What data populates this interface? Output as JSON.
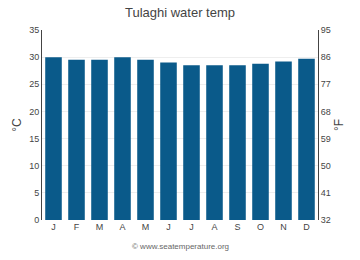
{
  "chart_data": {
    "type": "bar",
    "title": "Tulaghi water temp",
    "categories": [
      "J",
      "F",
      "M",
      "A",
      "M",
      "J",
      "J",
      "A",
      "S",
      "O",
      "N",
      "D"
    ],
    "values": [
      30.0,
      29.5,
      29.5,
      30.0,
      29.5,
      29.0,
      28.5,
      28.5,
      28.5,
      28.8,
      29.2,
      29.7
    ],
    "color": "#0a5a8a",
    "ylabel": "°C",
    "y2label": "°F",
    "ylim": [
      0,
      35
    ],
    "yticks": [
      0,
      5,
      10,
      15,
      20,
      25,
      30,
      35
    ],
    "y2lim": [
      32,
      95
    ],
    "y2ticks": [
      32,
      41,
      50,
      59,
      68,
      77,
      86,
      95
    ],
    "grid": true,
    "annotations": [
      "© www.seatemperature.org"
    ]
  }
}
